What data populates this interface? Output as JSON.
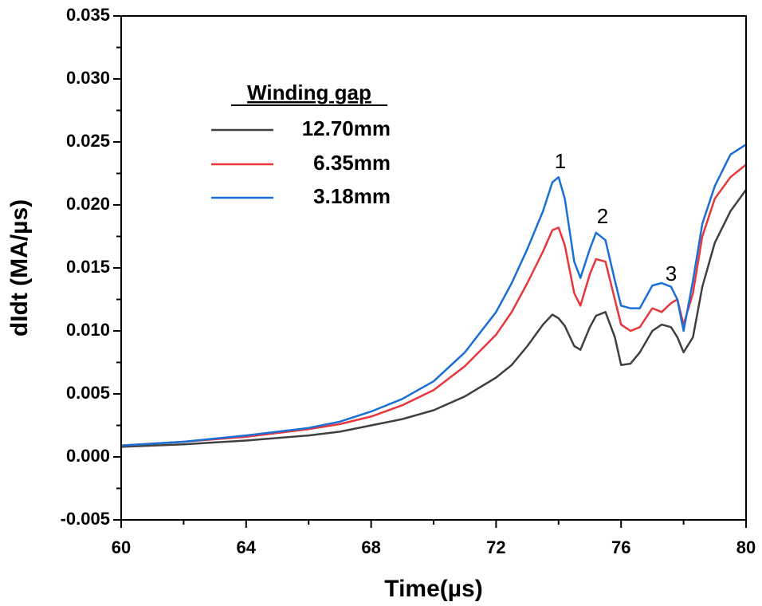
{
  "chart_data": {
    "type": "line",
    "x_label": "Time(µs)",
    "y_label": "dIdt (MA/µs)",
    "legend_title": "Winding gap",
    "annotations": [
      "1",
      "2",
      "3"
    ],
    "x": [
      60,
      62,
      64,
      66,
      67,
      68,
      69,
      70,
      71,
      72,
      72.5,
      73,
      73.5,
      73.8,
      74,
      74.2,
      74.5,
      74.7,
      75,
      75.2,
      75.5,
      75.8,
      76,
      76.3,
      76.6,
      77,
      77.3,
      77.6,
      77.8,
      78,
      78.3,
      78.6,
      79,
      79.5,
      80
    ],
    "series": [
      {
        "name": "12.70mm",
        "color": "#404040",
        "values": [
          0.0008,
          0.001,
          0.0013,
          0.0017,
          0.002,
          0.0025,
          0.003,
          0.0037,
          0.0048,
          0.0063,
          0.0073,
          0.0088,
          0.0105,
          0.0113,
          0.011,
          0.0104,
          0.0088,
          0.0085,
          0.0103,
          0.0112,
          0.0115,
          0.0095,
          0.0073,
          0.0074,
          0.0083,
          0.01,
          0.0105,
          0.0103,
          0.0095,
          0.0083,
          0.0095,
          0.0135,
          0.017,
          0.0195,
          0.0212
        ]
      },
      {
        "name": "6.35mm",
        "color": "#e8363b",
        "values": [
          0.0009,
          0.0012,
          0.0016,
          0.0022,
          0.0026,
          0.0032,
          0.0041,
          0.0053,
          0.0072,
          0.0097,
          0.0115,
          0.0138,
          0.0163,
          0.018,
          0.0182,
          0.0168,
          0.013,
          0.012,
          0.0145,
          0.0157,
          0.0155,
          0.0125,
          0.0105,
          0.01,
          0.0103,
          0.0118,
          0.0115,
          0.0122,
          0.0125,
          0.0105,
          0.013,
          0.0175,
          0.0205,
          0.0222,
          0.0232
        ]
      },
      {
        "name": "3.18mm",
        "color": "#1a6fd6",
        "values": [
          0.0009,
          0.0012,
          0.0017,
          0.0023,
          0.0028,
          0.0036,
          0.0046,
          0.006,
          0.0083,
          0.0115,
          0.0138,
          0.0165,
          0.0195,
          0.0218,
          0.0222,
          0.0205,
          0.0155,
          0.0142,
          0.0165,
          0.0178,
          0.0172,
          0.014,
          0.012,
          0.0118,
          0.0118,
          0.0136,
          0.0138,
          0.0135,
          0.0125,
          0.01,
          0.014,
          0.0185,
          0.0215,
          0.024,
          0.0248
        ]
      }
    ],
    "xlim": [
      60,
      80
    ],
    "xticks": [
      60,
      64,
      68,
      72,
      76,
      80
    ],
    "ylim": [
      -0.005,
      0.035
    ],
    "yticks": [
      -0.005,
      {
        "value": 0,
        "label": "0.000"
      },
      0.005,
      {
        "value": 0.01,
        "label": "0.010"
      },
      0.015,
      {
        "value": 0.02,
        "label": "0.020"
      },
      0.025,
      {
        "value": 0.03,
        "label": "0.030"
      },
      0.035
    ]
  }
}
